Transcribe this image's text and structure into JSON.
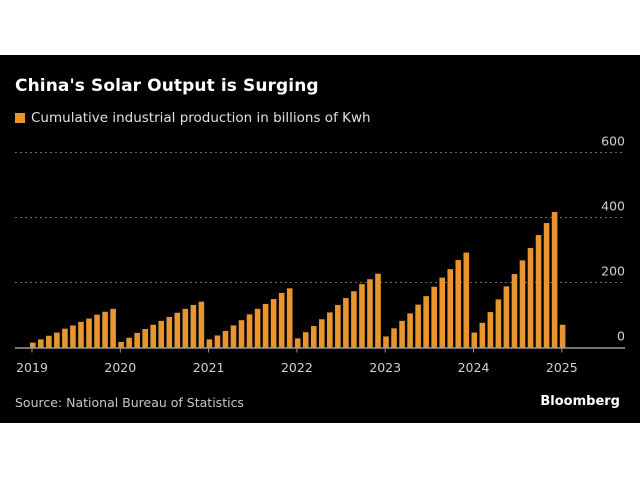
{
  "chart_data": {
    "type": "bar",
    "title": "China's Solar Output is Surging",
    "legend": [
      {
        "name": "Cumulative industrial production in billions of Kwh",
        "color": "#e8952f"
      }
    ],
    "source": "Source: National Bureau of Statistics",
    "brand": "Bloomberg",
    "xlabel": "",
    "ylabel": "",
    "ylim": [
      0,
      600
    ],
    "yticks": [
      0,
      200,
      400,
      600
    ],
    "y_axis_side": "right",
    "grid": "horizontal dotted",
    "xticks": [
      "2019",
      "2020",
      "2021",
      "2022",
      "2023",
      "2024",
      "2025"
    ],
    "categories": [
      "2019-02",
      "2019-03",
      "2019-04",
      "2019-05",
      "2019-06",
      "2019-07",
      "2019-08",
      "2019-09",
      "2019-10",
      "2019-11",
      "2019-12",
      "2020-02",
      "2020-03",
      "2020-04",
      "2020-05",
      "2020-06",
      "2020-07",
      "2020-08",
      "2020-09",
      "2020-10",
      "2020-11",
      "2020-12",
      "2021-02",
      "2021-03",
      "2021-04",
      "2021-05",
      "2021-06",
      "2021-07",
      "2021-08",
      "2021-09",
      "2021-10",
      "2021-11",
      "2021-12",
      "2022-02",
      "2022-03",
      "2022-04",
      "2022-05",
      "2022-06",
      "2022-07",
      "2022-08",
      "2022-09",
      "2022-10",
      "2022-11",
      "2022-12",
      "2023-02",
      "2023-03",
      "2023-04",
      "2023-05",
      "2023-06",
      "2023-07",
      "2023-08",
      "2023-09",
      "2023-10",
      "2023-11",
      "2023-12",
      "2024-02",
      "2024-03",
      "2024-04",
      "2024-05",
      "2024-06",
      "2024-07",
      "2024-08",
      "2024-09",
      "2024-10",
      "2024-11",
      "2024-12",
      "2025-02"
    ],
    "values": [
      15,
      25,
      36,
      46,
      58,
      68,
      79,
      89,
      101,
      110,
      119,
      17,
      30,
      45,
      57,
      70,
      82,
      94,
      107,
      119,
      131,
      141,
      25,
      37,
      51,
      68,
      84,
      102,
      119,
      134,
      149,
      168,
      182,
      28,
      47,
      66,
      87,
      108,
      131,
      152,
      173,
      195,
      210,
      227,
      34,
      59,
      82,
      105,
      132,
      158,
      187,
      215,
      241,
      269,
      292,
      46,
      76,
      109,
      148,
      188,
      226,
      268,
      306,
      346,
      383,
      417,
      70
    ],
    "bar_color": "#e8952f"
  }
}
